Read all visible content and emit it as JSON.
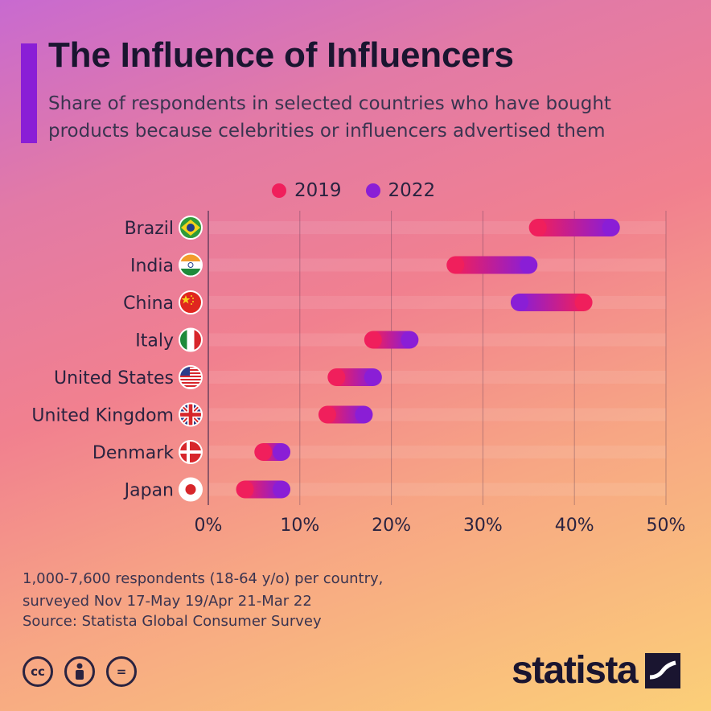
{
  "title": "The Influence of Influencers",
  "subtitle": "Share of respondents in selected countries who have bought products because celebrities or influencers advertised them",
  "legend": {
    "y2019": {
      "label": "2019",
      "color": "#f01f5c"
    },
    "y2022": {
      "label": "2022",
      "color": "#8a1ed6"
    }
  },
  "chart_data": {
    "type": "dumbbell",
    "categories": [
      "Brazil",
      "India",
      "China",
      "Italy",
      "United States",
      "United Kingdom",
      "Denmark",
      "Japan"
    ],
    "flags": [
      "brazil-flag-icon",
      "india-flag-icon",
      "china-flag-icon",
      "italy-flag-icon",
      "usa-flag-icon",
      "uk-flag-icon",
      "denmark-flag-icon",
      "japan-flag-icon"
    ],
    "series": [
      {
        "name": "2019",
        "color": "#f01f5c",
        "values": [
          36,
          27,
          41,
          18,
          14,
          13,
          6,
          4
        ]
      },
      {
        "name": "2022",
        "color": "#8a1ed6",
        "values": [
          44,
          35,
          34,
          22,
          18,
          17,
          8,
          8
        ]
      }
    ],
    "xlim": [
      0,
      50
    ],
    "ticks": [
      0,
      10,
      20,
      30,
      40,
      50
    ],
    "tick_labels": [
      "0%",
      "10%",
      "20%",
      "30%",
      "40%",
      "50%"
    ]
  },
  "footer": {
    "note_line1": "1,000-7,600 respondents (18-64 y/o) per country,",
    "note_line2": "surveyed Nov 17-May 19/Apr 21-Mar 22",
    "source": "Source: Statista Global Consumer Survey"
  },
  "license_icons": [
    {
      "name": "cc-icon",
      "glyph": "cc"
    },
    {
      "name": "attribution-icon",
      "glyph": "👤"
    },
    {
      "name": "no-derivatives-icon",
      "glyph": "="
    }
  ],
  "logo": {
    "text": "statista"
  }
}
